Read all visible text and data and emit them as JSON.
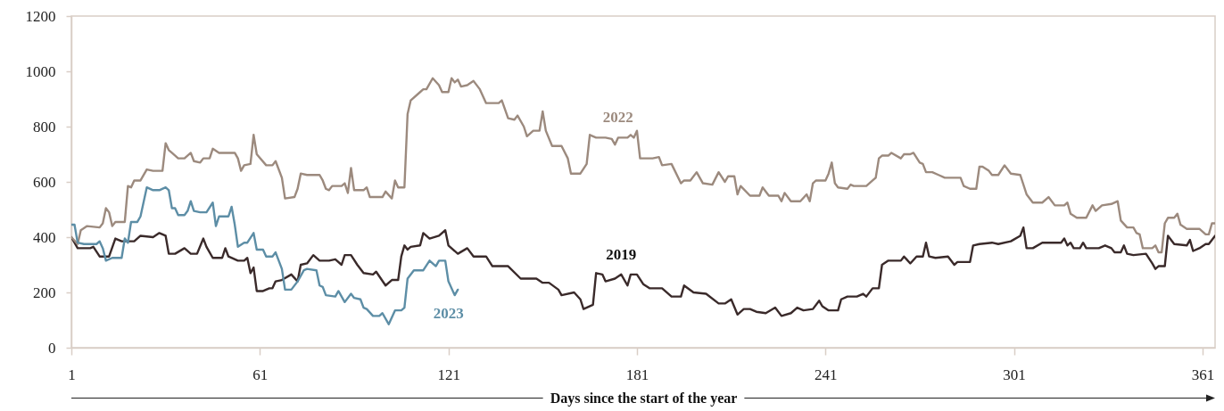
{
  "chart_data": {
    "type": "line",
    "xlabel": "Days since the start of the year",
    "xlim": [
      1,
      365
    ],
    "xticks": [
      1,
      61,
      121,
      181,
      241,
      301,
      361
    ],
    "ylim": [
      0,
      1200
    ],
    "yticks": [
      0,
      200,
      400,
      600,
      800,
      1000,
      1200
    ],
    "grid": false,
    "legend": false,
    "line_style": "solid",
    "series": [
      {
        "name": "2019",
        "color": "#3a2a2a",
        "x": [
          1,
          3,
          7,
          8,
          10,
          13,
          15,
          17,
          21,
          23,
          27,
          29,
          31,
          32,
          34,
          37,
          39,
          41,
          43,
          44,
          46,
          49,
          50,
          51,
          54,
          56,
          57,
          58,
          59,
          60,
          62,
          64,
          65,
          66,
          68,
          71,
          73,
          74,
          76,
          78,
          80,
          83,
          85,
          87,
          88,
          90,
          92,
          94,
          97,
          98,
          101,
          103,
          105,
          106,
          107,
          108,
          109,
          112,
          113,
          115,
          118,
          120,
          121,
          124,
          127,
          129,
          133,
          135,
          140,
          144,
          149,
          151,
          153,
          156,
          157,
          161,
          163,
          164,
          167,
          168,
          170,
          171,
          174,
          176,
          178,
          179,
          181,
          183,
          185,
          189,
          192,
          195,
          196,
          199,
          203,
          207,
          209,
          211,
          213,
          215,
          217,
          219,
          222,
          225,
          227,
          230,
          232,
          234,
          237,
          239,
          240,
          242,
          245,
          246,
          248,
          251,
          253,
          254,
          256,
          258,
          259,
          261,
          265,
          266,
          268,
          270,
          272,
          273,
          274,
          276,
          280,
          282,
          283,
          287,
          288,
          290,
          294,
          296,
          300,
          303,
          304,
          305,
          307,
          310,
          316,
          317,
          318,
          319,
          320,
          322,
          323,
          324,
          328,
          330,
          332,
          333,
          335,
          336,
          337,
          339,
          343,
          345,
          346,
          347,
          349,
          350,
          352,
          356,
          357,
          358,
          360,
          362,
          363,
          365
        ],
        "values": [
          400,
          360,
          360,
          365,
          330,
          330,
          395,
          385,
          385,
          405,
          400,
          415,
          405,
          340,
          340,
          360,
          340,
          340,
          395,
          365,
          325,
          325,
          360,
          330,
          315,
          315,
          325,
          270,
          290,
          205,
          205,
          215,
          215,
          240,
          245,
          265,
          240,
          300,
          305,
          335,
          315,
          315,
          320,
          300,
          335,
          335,
          300,
          270,
          265,
          275,
          225,
          245,
          245,
          330,
          370,
          355,
          365,
          370,
          415,
          395,
          405,
          425,
          370,
          340,
          360,
          330,
          330,
          295,
          295,
          250,
          250,
          235,
          235,
          210,
          190,
          200,
          175,
          140,
          155,
          270,
          265,
          240,
          250,
          265,
          225,
          265,
          265,
          230,
          215,
          215,
          185,
          185,
          225,
          200,
          195,
          160,
          160,
          175,
          120,
          140,
          140,
          130,
          125,
          145,
          115,
          125,
          145,
          135,
          140,
          170,
          150,
          135,
          135,
          175,
          185,
          185,
          195,
          185,
          215,
          215,
          300,
          315,
          315,
          330,
          305,
          330,
          330,
          380,
          330,
          325,
          330,
          300,
          310,
          310,
          370,
          375,
          380,
          375,
          385,
          405,
          435,
          360,
          360,
          380,
          380,
          395,
          370,
          380,
          360,
          360,
          380,
          360,
          360,
          370,
          360,
          345,
          345,
          370,
          340,
          335,
          340,
          305,
          285,
          295,
          295,
          405,
          375,
          370,
          390,
          350,
          360,
          375,
          375,
          405
        ]
      },
      {
        "name": "2022",
        "color": "#9c8a7e",
        "x": [
          1,
          3,
          4,
          6,
          10,
          11,
          12,
          13,
          14,
          15,
          18,
          19,
          20,
          21,
          23,
          25,
          27,
          30,
          31,
          32,
          33,
          35,
          37,
          39,
          40,
          42,
          43,
          45,
          46,
          48,
          53,
          54,
          55,
          56,
          58,
          59,
          60,
          63,
          65,
          66,
          68,
          69,
          72,
          73,
          74,
          76,
          80,
          81,
          82,
          83,
          84,
          87,
          88,
          89,
          90,
          91,
          94,
          95,
          96,
          100,
          101,
          103,
          104,
          105,
          107,
          108,
          109,
          112,
          113,
          114,
          116,
          118,
          119,
          121,
          122,
          123,
          124,
          125,
          127,
          129,
          131,
          133,
          137,
          138,
          140,
          142,
          143,
          145,
          146,
          148,
          150,
          151,
          152,
          154,
          157,
          159,
          160,
          163,
          165,
          166,
          168,
          171,
          173,
          174,
          175,
          178,
          179,
          180,
          181,
          182,
          186,
          188,
          189,
          192,
          195,
          196,
          198,
          200,
          202,
          205,
          207,
          209,
          210,
          212,
          213,
          214,
          217,
          220,
          221,
          223,
          226,
          227,
          228,
          230,
          233,
          235,
          236,
          237,
          238,
          241,
          242,
          243,
          244,
          245,
          248,
          249,
          250,
          254,
          256,
          257,
          258,
          259,
          261,
          262,
          265,
          266,
          268,
          269,
          271,
          272,
          273,
          275,
          277,
          279,
          284,
          285,
          287,
          289,
          290,
          291,
          293,
          294,
          296,
          298,
          300,
          303,
          305,
          307,
          310,
          312,
          314,
          317,
          318,
          319,
          321,
          324,
          326,
          327,
          329,
          332,
          334,
          335,
          337,
          339,
          340,
          341,
          342,
          345,
          346,
          347,
          348,
          349,
          350,
          352,
          353,
          354,
          356,
          360,
          362,
          363,
          364,
          365
        ],
        "values": [
          400,
          375,
          425,
          440,
          435,
          450,
          505,
          490,
          440,
          455,
          455,
          585,
          580,
          605,
          605,
          645,
          640,
          640,
          740,
          715,
          705,
          685,
          685,
          705,
          675,
          670,
          685,
          685,
          720,
          705,
          705,
          685,
          640,
          660,
          665,
          770,
          700,
          660,
          660,
          675,
          615,
          540,
          545,
          575,
          630,
          625,
          625,
          605,
          575,
          570,
          585,
          585,
          595,
          560,
          650,
          570,
          570,
          580,
          545,
          545,
          565,
          540,
          605,
          580,
          580,
          845,
          895,
          925,
          935,
          935,
          975,
          950,
          925,
          925,
          975,
          960,
          970,
          945,
          950,
          965,
          935,
          885,
          885,
          895,
          830,
          825,
          840,
          800,
          765,
          785,
          785,
          855,
          785,
          730,
          730,
          685,
          630,
          630,
          665,
          770,
          760,
          760,
          755,
          735,
          760,
          760,
          770,
          760,
          785,
          685,
          685,
          690,
          660,
          665,
          595,
          605,
          605,
          635,
          595,
          590,
          635,
          600,
          620,
          620,
          555,
          585,
          550,
          550,
          580,
          550,
          550,
          530,
          560,
          530,
          530,
          555,
          530,
          595,
          605,
          605,
          630,
          670,
          595,
          580,
          575,
          590,
          585,
          585,
          605,
          615,
          685,
          695,
          695,
          705,
          685,
          700,
          700,
          705,
          670,
          665,
          635,
          635,
          625,
          615,
          615,
          585,
          575,
          575,
          655,
          655,
          640,
          625,
          625,
          660,
          630,
          625,
          555,
          525,
          525,
          545,
          515,
          515,
          525,
          485,
          470,
          470,
          515,
          495,
          515,
          520,
          530,
          460,
          435,
          435,
          415,
          410,
          360,
          360,
          370,
          345,
          345,
          450,
          470,
          470,
          485,
          445,
          430,
          430,
          410,
          410,
          450,
          450
        ]
      },
      {
        "name": "2023",
        "color": "#5d8ea6",
        "x": [
          1,
          2,
          3,
          5,
          8,
          9,
          10,
          11,
          12,
          14,
          17,
          18,
          19,
          20,
          22,
          23,
          25,
          27,
          29,
          31,
          32,
          33,
          34,
          35,
          37,
          38,
          39,
          40,
          42,
          44,
          46,
          47,
          48,
          51,
          52,
          53,
          54,
          56,
          57,
          59,
          60,
          62,
          63,
          65,
          66,
          68,
          69,
          71,
          73,
          75,
          76,
          79,
          80,
          81,
          82,
          85,
          86,
          88,
          90,
          91,
          93,
          94,
          95,
          97,
          99,
          100,
          102,
          104,
          106,
          107,
          108,
          110,
          113,
          115,
          117,
          118,
          120,
          121,
          123,
          124
        ],
        "values": [
          445,
          445,
          380,
          375,
          375,
          375,
          385,
          360,
          315,
          325,
          325,
          395,
          380,
          455,
          455,
          475,
          580,
          570,
          570,
          580,
          570,
          505,
          505,
          480,
          480,
          495,
          530,
          495,
          490,
          490,
          525,
          440,
          475,
          475,
          510,
          445,
          365,
          380,
          380,
          415,
          355,
          355,
          330,
          330,
          345,
          285,
          210,
          210,
          240,
          280,
          285,
          280,
          225,
          220,
          190,
          185,
          205,
          165,
          195,
          180,
          175,
          145,
          140,
          115,
          115,
          125,
          85,
          135,
          135,
          145,
          250,
          280,
          280,
          315,
          295,
          315,
          315,
          240,
          190,
          210
        ]
      }
    ]
  }
}
